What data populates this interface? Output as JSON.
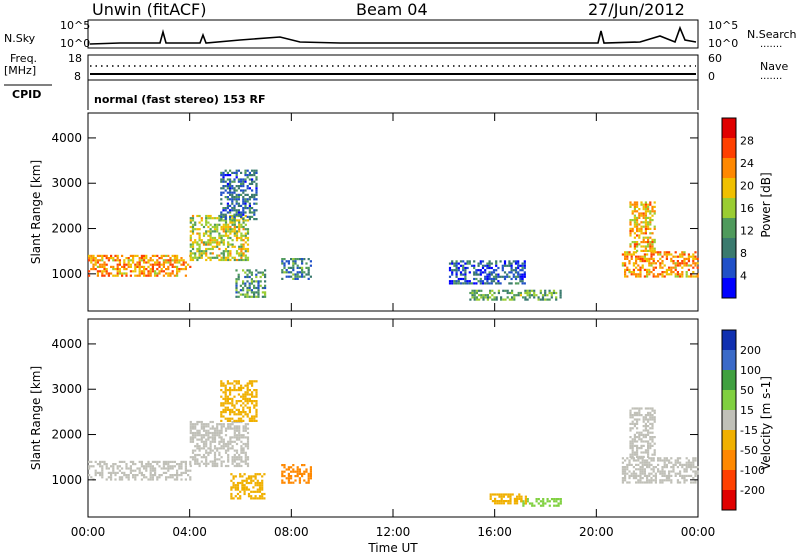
{
  "header": {
    "radar": "Unwin (fitACF)",
    "beam": "Beam 04",
    "date": "27/Jun/2012"
  },
  "top_panels": {
    "nsky_label": "N.Sky",
    "nsky_ticks": [
      "10^5",
      "10^0"
    ],
    "nsearch_label": "N.Search",
    "nsearch_ticks": [
      "10^5",
      "10^0"
    ],
    "freq_label": "Freq.",
    "freq_unit": "[MHz]",
    "freq_ticks": [
      "18",
      "8"
    ],
    "nave_label": "Nave",
    "nave_ticks": [
      "60",
      "0"
    ],
    "cpid_label": "CPID",
    "cpid_text": "normal (fast stereo) 153 RF"
  },
  "chart_data": [
    {
      "type": "heatmap",
      "name": "power",
      "ylabel": "Slant Range [km]",
      "xlabel": "",
      "x_ticks": [
        "00:00",
        "04:00",
        "08:00",
        "12:00",
        "16:00",
        "20:00",
        "00:00"
      ],
      "y_ticks": [
        "1000",
        "2000",
        "3000",
        "4000"
      ],
      "xlim_hours": [
        0,
        24
      ],
      "ylim_km": [
        180,
        4550
      ],
      "colorbar": {
        "label": "Power [dB]",
        "ticks": [
          "28",
          "24",
          "20",
          "16",
          "12",
          "8",
          "4"
        ],
        "range": [
          0,
          30
        ],
        "colors": [
          "#0000ff",
          "#2050c8",
          "#3a7a6e",
          "#4f9a5c",
          "#9acd32",
          "#f0c000",
          "#ff8800",
          "#ff4000",
          "#e00000"
        ]
      },
      "echo_regions": [
        {
          "t0": 0.0,
          "t1": 4.0,
          "r0": 980,
          "r1": 1420,
          "level": 21
        },
        {
          "t0": 4.0,
          "t1": 6.3,
          "r0": 1300,
          "r1": 2300,
          "level": 16
        },
        {
          "t0": 5.2,
          "t1": 6.6,
          "r0": 2200,
          "r1": 3300,
          "level": 7
        },
        {
          "t0": 5.8,
          "t1": 7.0,
          "r0": 500,
          "r1": 1100,
          "level": 10
        },
        {
          "t0": 7.6,
          "t1": 8.8,
          "r0": 900,
          "r1": 1350,
          "level": 9
        },
        {
          "t0": 21.0,
          "t1": 24.0,
          "r0": 950,
          "r1": 1500,
          "level": 21
        },
        {
          "t0": 21.3,
          "t1": 22.3,
          "r0": 1500,
          "r1": 2600,
          "level": 19
        },
        {
          "t0": 15.0,
          "t1": 18.6,
          "r0": 450,
          "r1": 650,
          "level": 12
        },
        {
          "t0": 14.2,
          "t1": 17.2,
          "r0": 800,
          "r1": 1300,
          "level": 6
        }
      ]
    },
    {
      "type": "heatmap",
      "name": "velocity",
      "ylabel": "Slant Range [km]",
      "xlabel": "Time UT",
      "x_ticks": [
        "00:00",
        "04:00",
        "08:00",
        "12:00",
        "16:00",
        "20:00",
        "00:00"
      ],
      "y_ticks": [
        "1000",
        "2000",
        "3000",
        "4000"
      ],
      "xlim_hours": [
        0,
        24
      ],
      "ylim_km": [
        180,
        4550
      ],
      "colorbar": {
        "label": "Velocity [m s-1]",
        "ticks": [
          "200",
          "100",
          "50",
          "15",
          "-15",
          "-50",
          "-100",
          "-200"
        ],
        "range": [
          -250,
          250
        ],
        "colors": [
          "#e00000",
          "#ff4000",
          "#ff8800",
          "#f0b000",
          "#c0c0b8",
          "#80d040",
          "#40a040",
          "#3a6ac8",
          "#1030b0"
        ]
      },
      "echo_regions": [
        {
          "t0": 0.0,
          "t1": 4.0,
          "r0": 1000,
          "r1": 1420,
          "level": 0
        },
        {
          "t0": 4.0,
          "t1": 6.3,
          "r0": 1300,
          "r1": 2300,
          "level": 0
        },
        {
          "t0": 5.2,
          "t1": 6.6,
          "r0": 2300,
          "r1": 3200,
          "level": -40
        },
        {
          "t0": 5.6,
          "t1": 6.9,
          "r0": 600,
          "r1": 1150,
          "level": -60
        },
        {
          "t0": 7.6,
          "t1": 8.8,
          "r0": 950,
          "r1": 1350,
          "level": -120
        },
        {
          "t0": 21.0,
          "t1": 24.0,
          "r0": 950,
          "r1": 1500,
          "level": 0
        },
        {
          "t0": 21.3,
          "t1": 22.3,
          "r0": 1500,
          "r1": 2600,
          "level": 0
        },
        {
          "t0": 17.0,
          "t1": 18.6,
          "r0": 420,
          "r1": 600,
          "level": 60
        },
        {
          "t0": 15.8,
          "t1": 17.2,
          "r0": 500,
          "r1": 700,
          "level": -40
        }
      ]
    }
  ]
}
